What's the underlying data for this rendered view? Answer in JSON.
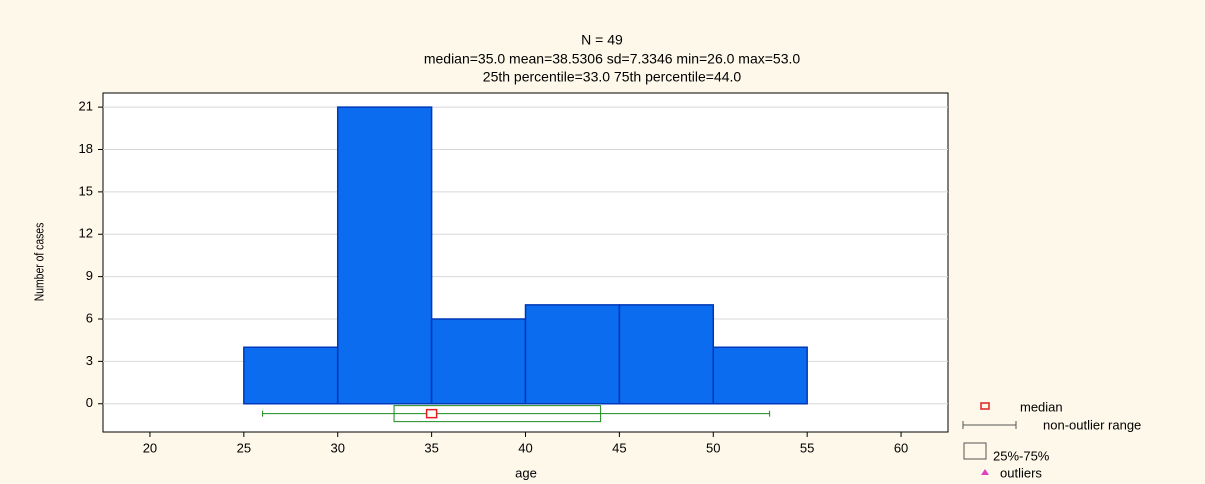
{
  "chart_data": {
    "type": "histogram",
    "title": "N = 49",
    "subtitle": "median=35.0  mean=38.5306  sd=7.3346  min=26.0  max=53.0",
    "subtitle2": "25th percentile=33.0  75th percentile=44.0",
    "x_label": "age",
    "y_label": "Number of cases",
    "bins": [
      25,
      30,
      35,
      40,
      45,
      50,
      55
    ],
    "counts": [
      4,
      21,
      6,
      7,
      7,
      4
    ],
    "color": "#0b6cf0",
    "box": {
      "min": 26,
      "q1": 33,
      "median": 35,
      "q3": 44,
      "max": 53
    },
    "xlim": [
      17.5,
      62.5
    ],
    "ylim": [
      -2,
      22
    ],
    "xticks": [
      20,
      25,
      30,
      35,
      40,
      45,
      50,
      55,
      60
    ],
    "yticks": [
      0,
      3,
      6,
      9,
      12,
      15,
      18,
      21
    ],
    "grid": true,
    "legend": [
      "median",
      "non-outlier range",
      "25%-75%",
      "outliers"
    ]
  }
}
